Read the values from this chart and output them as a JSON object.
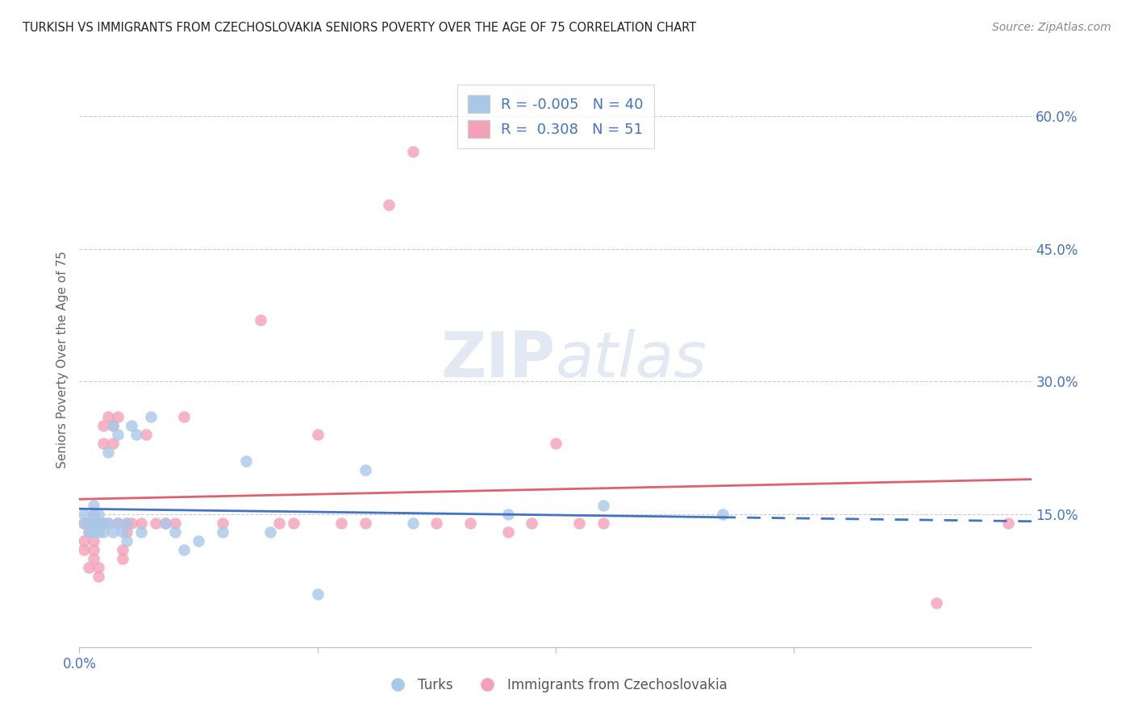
{
  "title": "TURKISH VS IMMIGRANTS FROM CZECHOSLOVAKIA SENIORS POVERTY OVER THE AGE OF 75 CORRELATION CHART",
  "source": "Source: ZipAtlas.com",
  "ylabel": "Seniors Poverty Over the Age of 75",
  "watermark_zip": "ZIP",
  "watermark_atlas": "atlas",
  "legend_r1": "R = -0.005",
  "legend_n1": "N = 40",
  "legend_r2": "R =  0.308",
  "legend_n2": "N = 51",
  "label1": "Turks",
  "label2": "Immigrants from Czechoslovakia",
  "xmin": 0.0,
  "xmax": 0.2,
  "ymin": 0.0,
  "ymax": 0.65,
  "yticks_right": [
    0.15,
    0.3,
    0.45,
    0.6
  ],
  "ytick_labels_right": [
    "15.0%",
    "30.0%",
    "45.0%",
    "60.0%"
  ],
  "color_blue": "#a8c8e8",
  "color_pink": "#f4a0b8",
  "line_color_blue": "#4472c4",
  "line_color_pink": "#e06070",
  "background": "#ffffff",
  "turks_x": [
    0.001,
    0.001,
    0.002,
    0.002,
    0.003,
    0.003,
    0.003,
    0.003,
    0.004,
    0.004,
    0.004,
    0.005,
    0.005,
    0.005,
    0.006,
    0.006,
    0.007,
    0.007,
    0.008,
    0.008,
    0.009,
    0.01,
    0.01,
    0.011,
    0.012,
    0.013,
    0.015,
    0.018,
    0.02,
    0.022,
    0.025,
    0.03,
    0.035,
    0.04,
    0.05,
    0.06,
    0.07,
    0.09,
    0.11,
    0.135
  ],
  "turks_y": [
    0.14,
    0.15,
    0.13,
    0.14,
    0.14,
    0.15,
    0.13,
    0.16,
    0.14,
    0.13,
    0.15,
    0.14,
    0.13,
    0.14,
    0.22,
    0.14,
    0.25,
    0.13,
    0.24,
    0.14,
    0.13,
    0.12,
    0.14,
    0.25,
    0.24,
    0.13,
    0.26,
    0.14,
    0.13,
    0.11,
    0.12,
    0.13,
    0.21,
    0.13,
    0.06,
    0.2,
    0.14,
    0.15,
    0.16,
    0.15
  ],
  "czech_x": [
    0.001,
    0.001,
    0.001,
    0.002,
    0.002,
    0.002,
    0.003,
    0.003,
    0.003,
    0.003,
    0.004,
    0.004,
    0.004,
    0.005,
    0.005,
    0.005,
    0.006,
    0.006,
    0.007,
    0.007,
    0.008,
    0.008,
    0.009,
    0.009,
    0.01,
    0.01,
    0.011,
    0.013,
    0.014,
    0.016,
    0.018,
    0.02,
    0.022,
    0.03,
    0.038,
    0.042,
    0.045,
    0.05,
    0.055,
    0.06,
    0.065,
    0.07,
    0.075,
    0.082,
    0.09,
    0.095,
    0.1,
    0.105,
    0.11,
    0.18,
    0.195
  ],
  "czech_y": [
    0.14,
    0.12,
    0.11,
    0.09,
    0.13,
    0.14,
    0.12,
    0.15,
    0.11,
    0.1,
    0.14,
    0.09,
    0.08,
    0.14,
    0.23,
    0.25,
    0.26,
    0.14,
    0.25,
    0.23,
    0.26,
    0.14,
    0.11,
    0.1,
    0.13,
    0.14,
    0.14,
    0.14,
    0.24,
    0.14,
    0.14,
    0.14,
    0.26,
    0.14,
    0.37,
    0.14,
    0.14,
    0.24,
    0.14,
    0.14,
    0.5,
    0.56,
    0.14,
    0.14,
    0.13,
    0.14,
    0.23,
    0.14,
    0.14,
    0.05,
    0.14
  ]
}
